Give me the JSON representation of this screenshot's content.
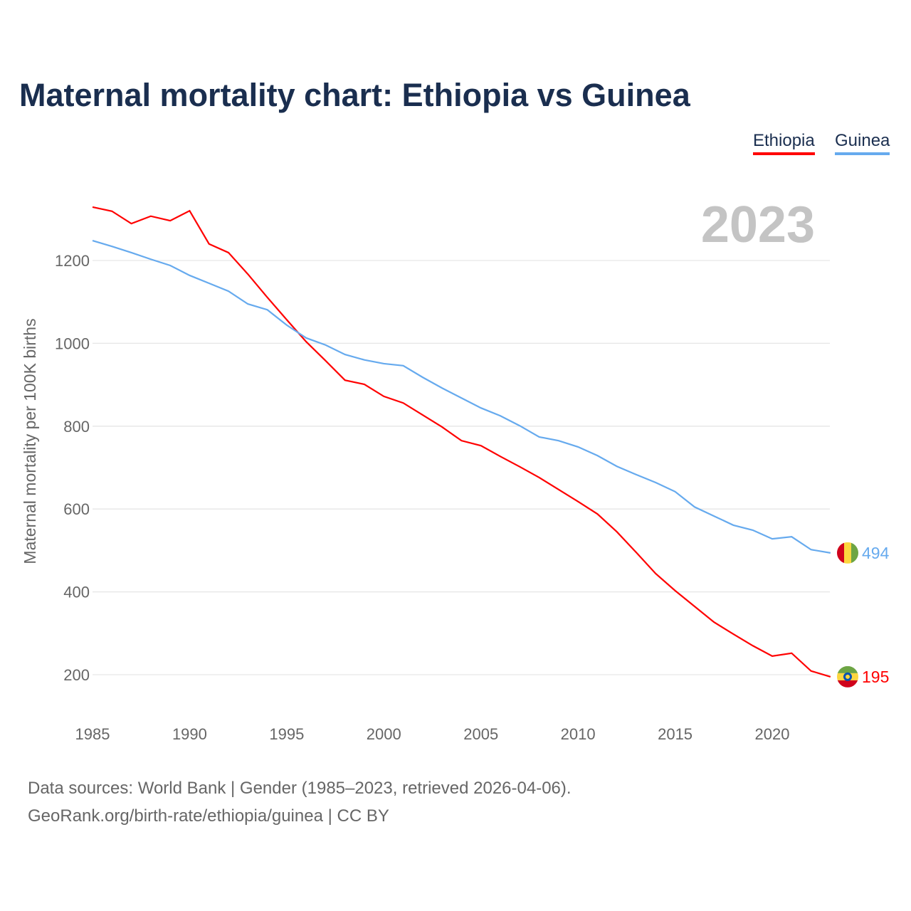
{
  "chart_data": {
    "type": "line",
    "title": "Maternal mortality chart: Ethiopia vs Guinea",
    "ylabel": "Maternal mortality per 100K births",
    "xlabel": "",
    "year_watermark": "2023",
    "x": [
      1985,
      1986,
      1987,
      1988,
      1989,
      1990,
      1991,
      1992,
      1993,
      1994,
      1995,
      1996,
      1997,
      1998,
      1999,
      2000,
      2001,
      2002,
      2003,
      2004,
      2005,
      2006,
      2007,
      2008,
      2009,
      2010,
      2011,
      2012,
      2013,
      2014,
      2015,
      2016,
      2017,
      2018,
      2019,
      2020,
      2021,
      2022,
      2023
    ],
    "xlim": [
      1985,
      2023
    ],
    "ylim": [
      100,
      1400
    ],
    "xticks": [
      "1985",
      "1990",
      "1995",
      "2000",
      "2005",
      "2010",
      "2015",
      "2020"
    ],
    "yticks": [
      "200",
      "400",
      "600",
      "800",
      "1000",
      "1200"
    ],
    "grid": true,
    "legend_position": "top-right",
    "series": [
      {
        "name": "Ethiopia",
        "color": "#ff0000",
        "end_label": "195",
        "values": [
          1329,
          1319,
          1289,
          1307,
          1296,
          1320,
          1240,
          1219,
          1167,
          1111,
          1057,
          1004,
          958,
          911,
          901,
          872,
          856,
          827,
          798,
          765,
          753,
          727,
          702,
          676,
          647,
          618,
          588,
          545,
          495,
          444,
          403,
          365,
          327,
          298,
          270,
          245,
          252,
          209,
          195
        ]
      },
      {
        "name": "Guinea",
        "color": "#66aaee",
        "end_label": "494",
        "values": [
          1248,
          1234,
          1219,
          1203,
          1188,
          1164,
          1145,
          1126,
          1095,
          1081,
          1044,
          1013,
          996,
          973,
          960,
          951,
          946,
          918,
          892,
          868,
          844,
          825,
          801,
          774,
          765,
          750,
          729,
          703,
          683,
          664,
          642,
          605,
          583,
          561,
          549,
          528,
          533,
          502,
          494
        ]
      }
    ]
  },
  "footer": {
    "line1": "Data sources: World Bank | Gender (1985–2023, retrieved 2026-04-06).",
    "line2": "GeoRank.org/birth-rate/ethiopia/guinea | CC BY"
  }
}
